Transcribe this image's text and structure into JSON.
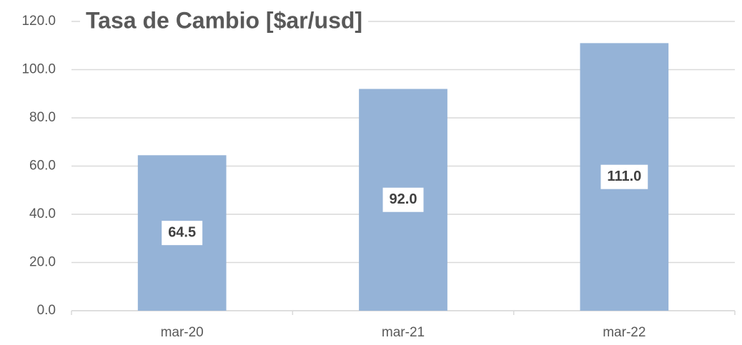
{
  "chart_data": {
    "type": "bar",
    "title": "Tasa de Cambio [$ar/usd]",
    "categories": [
      "mar-20",
      "mar-21",
      "mar-22"
    ],
    "values": [
      64.5,
      92.0,
      111.0
    ],
    "value_labels": [
      "64.5",
      "92.0",
      "111.0"
    ],
    "color": "#95b3d7",
    "ylim": [
      0,
      120
    ],
    "yticks": [
      {
        "value": 0,
        "label": "0.0"
      },
      {
        "value": 20,
        "label": "20.0"
      },
      {
        "value": 40,
        "label": "40.0"
      },
      {
        "value": 60,
        "label": "60.0"
      },
      {
        "value": 80,
        "label": "80.0"
      },
      {
        "value": 100,
        "label": "100.0"
      },
      {
        "value": 120,
        "label": "120.0"
      }
    ],
    "grid": true
  }
}
